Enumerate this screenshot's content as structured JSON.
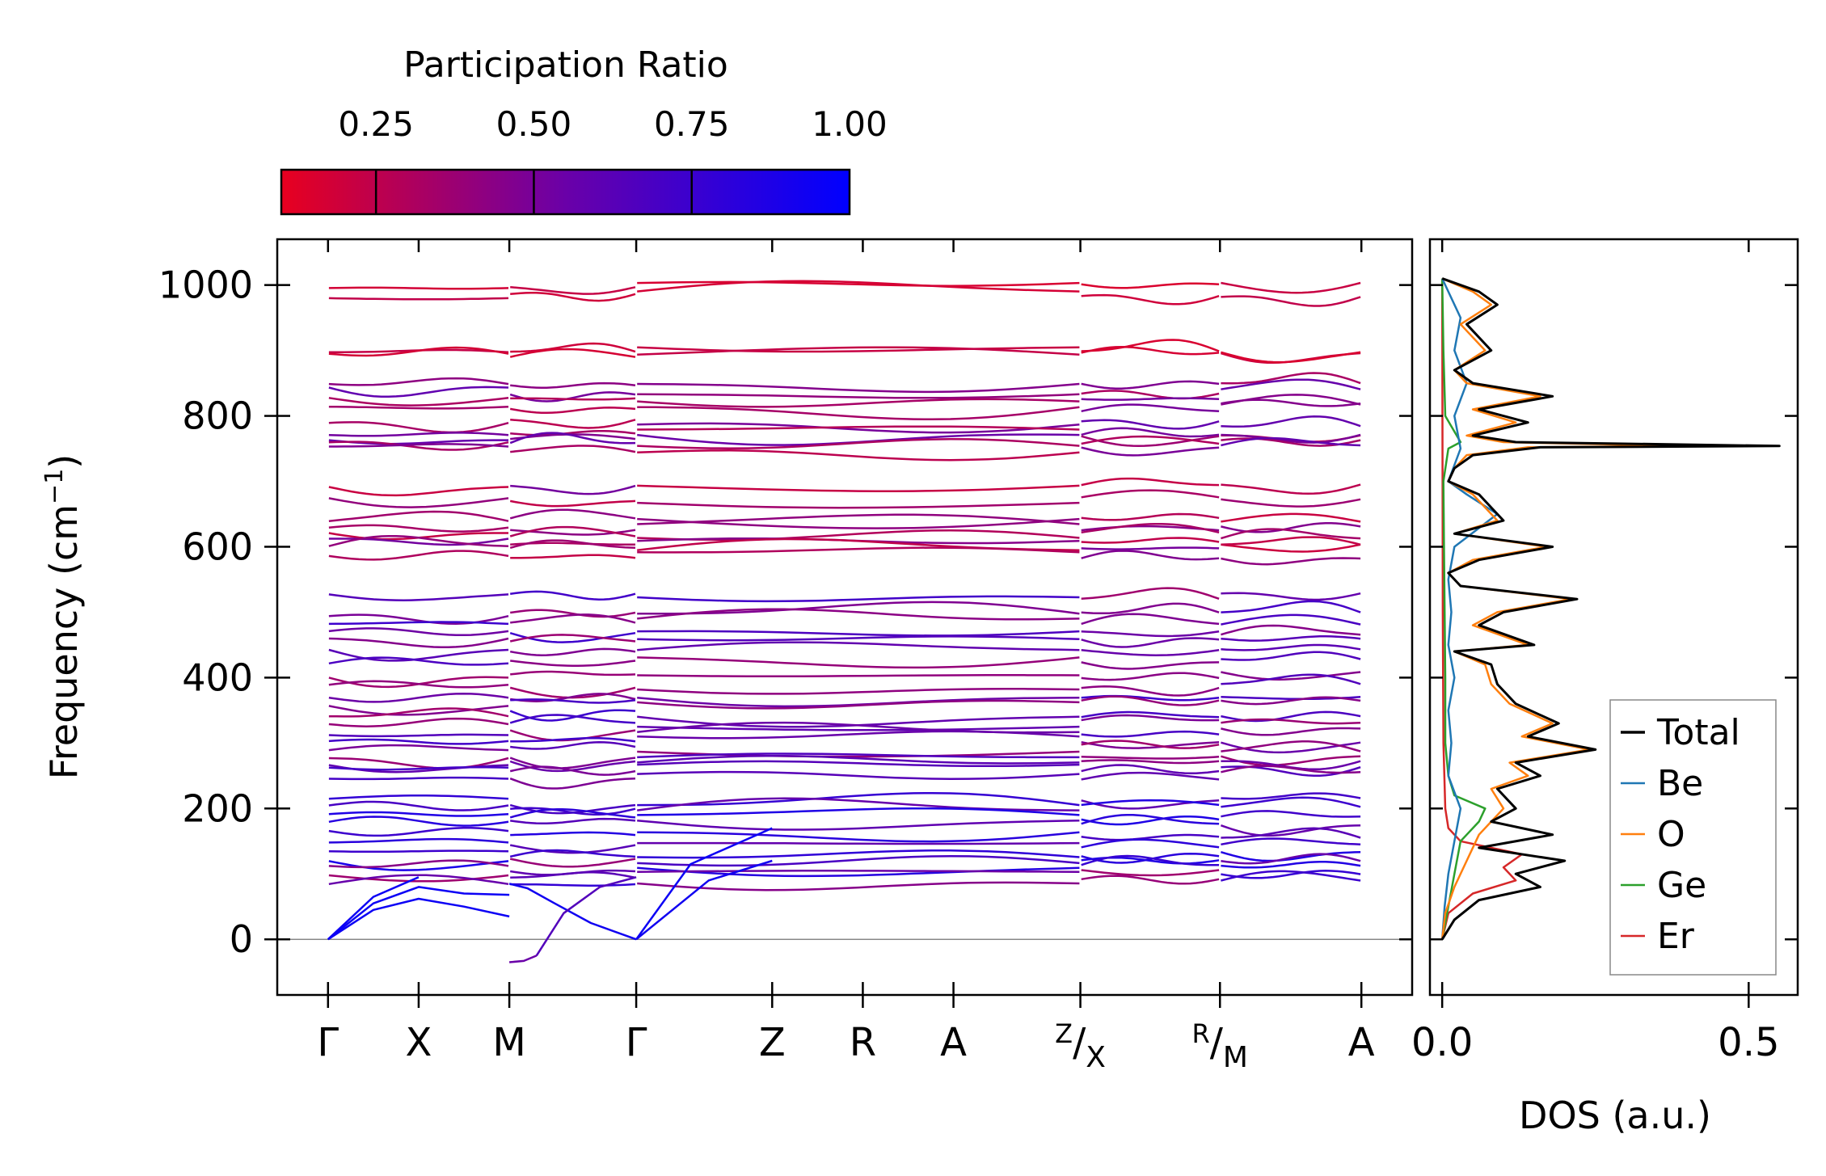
{
  "chart_data": [
    {
      "type": "line",
      "name": "phonon-band-structure",
      "ylabel": "Frequency (cm−1)",
      "ylabel_main": "Frequency (cm",
      "ylabel_exp": "−1",
      "ylabel_close": ")",
      "ylim": [
        -85,
        1070
      ],
      "yticks": [
        0,
        200,
        400,
        600,
        800,
        1000
      ],
      "ytick_labels": [
        "0",
        "200",
        "400",
        "600",
        "800",
        "1000"
      ],
      "kpath": [
        {
          "label": "Γ",
          "pos": 0.0
        },
        {
          "label": "X",
          "pos": 0.5
        },
        {
          "label": "M",
          "pos": 1.0
        },
        {
          "label": "Γ",
          "pos": 1.7
        },
        {
          "label": "Z",
          "pos": 2.45
        },
        {
          "label": "R",
          "pos": 2.95
        },
        {
          "label": "A",
          "pos": 3.45
        },
        {
          "top": "Z",
          "bottom": "X",
          "pos": 4.15
        },
        {
          "top": "R",
          "bottom": "M",
          "pos": 4.92
        },
        {
          "label": "A",
          "pos": 5.7
        }
      ],
      "xlim": [
        -0.28,
        5.98
      ],
      "segments": [
        [
          0.0,
          1.0
        ],
        [
          1.0,
          1.7
        ],
        [
          1.7,
          4.15
        ],
        [
          4.15,
          4.92
        ],
        [
          4.92,
          5.7
        ]
      ],
      "acoustic_modes": [
        {
          "x": [
            0.0,
            0.25,
            0.5,
            0.75,
            1.0
          ],
          "y": [
            0,
            45,
            62,
            50,
            35
          ],
          "pr": 0.95
        },
        {
          "x": [
            0.0,
            0.25,
            0.5,
            0.75,
            1.0
          ],
          "y": [
            0,
            55,
            80,
            70,
            68
          ],
          "pr": 0.95
        },
        {
          "x": [
            0.0,
            0.25,
            0.5
          ],
          "y": [
            0,
            65,
            95
          ],
          "pr": 0.95
        },
        {
          "x": [
            1.0,
            1.1,
            1.25,
            1.45,
            1.7
          ],
          "y": [
            85,
            78,
            55,
            25,
            0
          ],
          "pr": 0.93
        },
        {
          "x": [
            1.15,
            1.3,
            1.5,
            1.7
          ],
          "y": [
            -25,
            40,
            80,
            95
          ],
          "pr": 0.65
        },
        {
          "x": [
            1.7,
            2.0,
            2.45
          ],
          "y": [
            0,
            115,
            170
          ],
          "pr": 0.95
        },
        {
          "x": [
            1.7,
            2.1,
            2.45
          ],
          "y": [
            0,
            90,
            120
          ],
          "pr": 0.93
        },
        {
          "x": [
            1.0,
            1.08,
            1.15
          ],
          "y": [
            -35,
            -33,
            -25
          ],
          "pr": 0.55
        }
      ],
      "flat_band_levels": [
        1000,
        985,
        900,
        895,
        848,
        838,
        822,
        812,
        790,
        775,
        768,
        760,
        750,
        692,
        672,
        640,
        630,
        618,
        608,
        598,
        588,
        525,
        500,
        487,
        470,
        455,
        440,
        425,
        405,
        385,
        372,
        360,
        345,
        330,
        318,
        305,
        292,
        282,
        272,
        262,
        250,
        210,
        200,
        188,
        178,
        160,
        145,
        130,
        120,
        110,
        100,
        90
      ],
      "colorbar": {
        "label": "Participation Ratio",
        "ticks": [
          0.25,
          0.5,
          0.75,
          1.0
        ],
        "tick_labels": [
          "0.25",
          "0.50",
          "0.75",
          "1.00"
        ],
        "range": [
          0.1,
          1.0
        ],
        "color_low": "#e8001f",
        "color_mid": "#6a00a8",
        "color_high": "#0000ff"
      }
    },
    {
      "type": "line",
      "name": "density-of-states",
      "xlabel": "DOS (a.u.)",
      "xlim": [
        -0.02,
        0.58
      ],
      "xticks": [
        0.0,
        0.5
      ],
      "xtick_labels": [
        "0.0",
        "0.5"
      ],
      "ylim": [
        -85,
        1070
      ],
      "legend_position": "lower-right",
      "series": [
        {
          "name": "Total",
          "color": "#000000",
          "freq": [
            0,
            30,
            60,
            80,
            100,
            120,
            140,
            160,
            180,
            200,
            230,
            250,
            270,
            290,
            310,
            330,
            360,
            390,
            420,
            440,
            450,
            480,
            500,
            520,
            540,
            560,
            580,
            600,
            620,
            640,
            660,
            680,
            700,
            720,
            740,
            752,
            754,
            760,
            770,
            790,
            810,
            830,
            850,
            870,
            900,
            940,
            970,
            990,
            1010
          ],
          "dos": [
            0,
            0.02,
            0.06,
            0.16,
            0.12,
            0.2,
            0.06,
            0.18,
            0.08,
            0.12,
            0.09,
            0.16,
            0.12,
            0.25,
            0.14,
            0.19,
            0.12,
            0.09,
            0.08,
            0.02,
            0.15,
            0.06,
            0.1,
            0.22,
            0.03,
            0.01,
            0.06,
            0.18,
            0.02,
            0.1,
            0.08,
            0.06,
            0.01,
            0.02,
            0.05,
            0.16,
            0.55,
            0.12,
            0.05,
            0.14,
            0.06,
            0.18,
            0.05,
            0.02,
            0.08,
            0.04,
            0.09,
            0.06,
            0.0
          ]
        },
        {
          "name": "Be",
          "color": "#1f77b4",
          "freq": [
            0,
            50,
            100,
            150,
            200,
            250,
            300,
            350,
            400,
            450,
            500,
            550,
            600,
            650,
            680,
            700,
            750,
            800,
            850,
            900,
            950,
            1010
          ],
          "dos": [
            0,
            0.004,
            0.01,
            0.02,
            0.03,
            0.01,
            0.015,
            0.01,
            0.02,
            0.01,
            0.015,
            0.01,
            0.02,
            0.09,
            0.04,
            0.01,
            0.03,
            0.02,
            0.04,
            0.02,
            0.03,
            0.0
          ]
        },
        {
          "name": "O",
          "color": "#ff7f0e",
          "freq": [
            0,
            40,
            80,
            120,
            160,
            200,
            230,
            250,
            270,
            290,
            310,
            330,
            360,
            390,
            420,
            440,
            450,
            480,
            500,
            520,
            540,
            560,
            580,
            600,
            620,
            640,
            660,
            680,
            700,
            720,
            740,
            752,
            754,
            760,
            770,
            790,
            810,
            830,
            850,
            870,
            900,
            940,
            970,
            990,
            1010
          ],
          "dos": [
            0,
            0.005,
            0.02,
            0.04,
            0.06,
            0.1,
            0.08,
            0.14,
            0.11,
            0.24,
            0.13,
            0.18,
            0.11,
            0.08,
            0.07,
            0.02,
            0.14,
            0.05,
            0.09,
            0.21,
            0.03,
            0.01,
            0.05,
            0.17,
            0.02,
            0.09,
            0.07,
            0.05,
            0.01,
            0.02,
            0.04,
            0.14,
            0.4,
            0.1,
            0.04,
            0.12,
            0.05,
            0.16,
            0.04,
            0.02,
            0.07,
            0.03,
            0.08,
            0.05,
            0.0
          ]
        },
        {
          "name": "Ge",
          "color": "#2ca02c",
          "freq": [
            0,
            50,
            100,
            150,
            180,
            200,
            220,
            250,
            300,
            400,
            500,
            600,
            700,
            750,
            760,
            800,
            900,
            1010
          ],
          "dos": [
            0,
            0.01,
            0.02,
            0.03,
            0.06,
            0.07,
            0.02,
            0.01,
            0.005,
            0.005,
            0.004,
            0.003,
            0.002,
            0.01,
            0.03,
            0.005,
            0.002,
            0.0
          ]
        },
        {
          "name": "Er",
          "color": "#d62728",
          "freq": [
            0,
            40,
            70,
            90,
            110,
            130,
            150,
            170,
            200,
            300,
            500,
            1010
          ],
          "dos": [
            0,
            0.01,
            0.05,
            0.12,
            0.1,
            0.13,
            0.03,
            0.01,
            0.005,
            0.002,
            0.001,
            0.0
          ]
        }
      ]
    }
  ]
}
